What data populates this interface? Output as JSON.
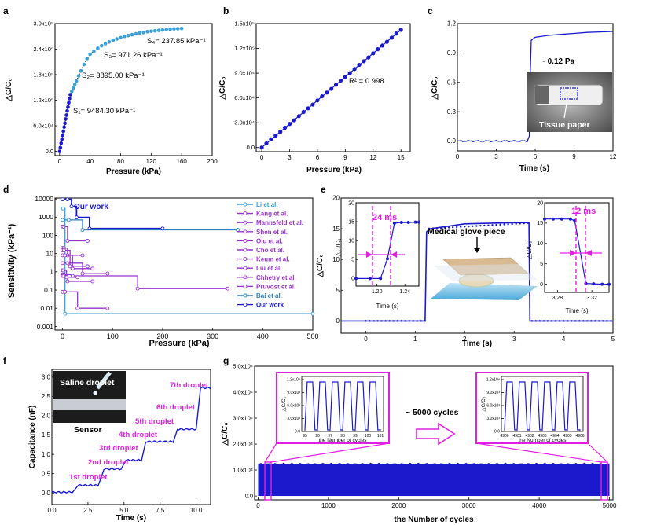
{
  "panels": {
    "a": {
      "label": "a",
      "xlabel": "Pressure (kPa)",
      "ylabel": "△C/C₀",
      "xticks": [
        "0",
        "40",
        "80",
        "120",
        "160",
        "200"
      ],
      "yticks": [
        "0.0",
        "6.0x10⁴",
        "1.2x10⁵",
        "1.8x10⁵",
        "2.4x10⁵",
        "3.0x10⁵"
      ],
      "annotations": [
        "S₄= 237.85 kPa⁻¹",
        "S₃= 971.26 kPa⁻¹",
        "S₂= 3895.00 kPa⁻¹",
        "S₁= 9484.30 kPa⁻¹"
      ]
    },
    "b": {
      "label": "b",
      "xlabel": "Pressure (kPa)",
      "ylabel": "△C/C₀",
      "xticks": [
        "0",
        "3",
        "6",
        "9",
        "12",
        "15"
      ],
      "yticks": [
        "0.0",
        "3.0x10⁴",
        "6.0x10⁴",
        "9.0x10⁴",
        "1.2x10⁵",
        "1.5x10⁵"
      ],
      "annotation": "R² = 0.998"
    },
    "c": {
      "label": "c",
      "xlabel": "Time (s)",
      "ylabel": "△C/C₀",
      "xticks": [
        "0",
        "3",
        "6",
        "9",
        "12"
      ],
      "yticks": [
        "0.0",
        "0.3",
        "0.6",
        "0.9",
        "1.2"
      ],
      "annotation": "~ 0.12 Pa",
      "inset_label": "Tissue paper"
    },
    "d": {
      "label": "d",
      "xlabel": "Pressure (kPa)",
      "ylabel": "Sensitivity (kPa⁻¹)",
      "xticks": [
        "0",
        "100",
        "200",
        "300",
        "400",
        "500"
      ],
      "yticks": [
        "0.001",
        "0.01",
        "0.1",
        "1",
        "10",
        "100",
        "1000",
        "10000"
      ],
      "our_work": "Our work",
      "legend": [
        "Li et al.",
        "Kang et al.",
        "Mannsfeld et al.",
        "Shen et al.",
        "Qiu et al.",
        "Cho et al.",
        "Keum et al.",
        "Liu et al.",
        "Chhetry et al.",
        "Pruvost et al.",
        "Bai et al.",
        "Our work"
      ]
    },
    "e": {
      "label": "e",
      "xlabel": "Time (s)",
      "ylabel": "△C/C₀",
      "xticks": [
        "0",
        "1",
        "2",
        "3",
        "4",
        "5"
      ],
      "yticks": [
        "0",
        "5",
        "10",
        "15",
        "20"
      ],
      "inset_left": {
        "xticks": [
          "1.20",
          "1.24"
        ],
        "yticks": [
          "0",
          "5",
          "10",
          "15",
          "20"
        ],
        "xlabel": "Time (s)",
        "ylabel": "△C/C₀",
        "label": "24 ms"
      },
      "inset_right": {
        "xticks": [
          "3.28",
          "3.32"
        ],
        "yticks": [
          "0",
          "5",
          "10",
          "15",
          "20"
        ],
        "xlabel": "Time (s)",
        "ylabel": "△C/C₀",
        "label": "12 ms"
      },
      "photo_label": "Medical glove piece"
    },
    "f": {
      "label": "f",
      "xlabel": "Time (s)",
      "ylabel": "Capacitance (nF)",
      "xticks": [
        "0.0",
        "2.5",
        "5.0",
        "7.5",
        "10.0"
      ],
      "yticks": [
        "0.0",
        "0.5",
        "1.0",
        "1.5",
        "2.0",
        "2.5",
        "3.0"
      ],
      "photo_labels": [
        "Saline droplet",
        "Sensor"
      ],
      "droplets": [
        "1st droplet",
        "2nd droplet",
        "3rd droplet",
        "4th droplet",
        "5th droplet",
        "6th droplet",
        "7th droplet"
      ]
    },
    "g": {
      "label": "g",
      "xlabel": "the Number of cycles",
      "ylabel": "△C/C₀",
      "xticks": [
        "0",
        "1000",
        "2000",
        "3000",
        "4000",
        "5000"
      ],
      "yticks": [
        "0.0",
        "1.0x10⁴",
        "2.0x10⁴",
        "3.0x10⁴",
        "4.0x10⁴",
        "5.0x10⁴"
      ],
      "annotation": "~ 5000 cycles",
      "inset_left": {
        "xticks": [
          "95",
          "96",
          "97",
          "98",
          "99",
          "100",
          "101"
        ],
        "yticks": [
          "0.0",
          "3.0x10³",
          "6.0x10³",
          "9.0x10³",
          "1.2x10⁴"
        ],
        "xlabel": "the Number of cycles",
        "ylabel": "△C/C₀"
      },
      "inset_right": {
        "xticks": [
          "4900",
          "4901",
          "4902",
          "4903",
          "4904",
          "4905",
          "4906"
        ],
        "yticks": [
          "0.0",
          "3.0x10³",
          "6.0x10³",
          "9.0x10³",
          "1.2x10⁴"
        ],
        "xlabel": "the Number of cycles",
        "ylabel": "△C/C₀"
      }
    }
  },
  "colors": {
    "blue": "#1a1acc",
    "teal": "#3aa0d8",
    "magenta": "#e020e0",
    "purple": "#9933cc"
  },
  "chart_data": [
    {
      "type": "scatter",
      "panel": "a",
      "title": "",
      "xlabel": "Pressure (kPa)",
      "ylabel": "△C/C₀",
      "xlim": [
        0,
        200
      ],
      "ylim": [
        0,
        300000
      ],
      "series": [
        {
          "name": "measured",
          "x": [
            0,
            1,
            2,
            3,
            4,
            5,
            6,
            7,
            8,
            9,
            10,
            11,
            12,
            13,
            14,
            16,
            18,
            20,
            22,
            25,
            28,
            32,
            36,
            40,
            45,
            50,
            55,
            60,
            65,
            70,
            75,
            80,
            85,
            90,
            95,
            100,
            105,
            110,
            115,
            120,
            125,
            130,
            135,
            140,
            145,
            150,
            155,
            160
          ],
          "y": [
            0,
            9000,
            19000,
            28000,
            38000,
            47000,
            57000,
            66000,
            76000,
            85000,
            95000,
            104000,
            114000,
            124000,
            133000,
            141000,
            149000,
            157000,
            165000,
            177000,
            189000,
            204000,
            218000,
            228000,
            235000,
            242000,
            248000,
            253000,
            257000,
            261000,
            264000,
            267000,
            270000,
            272000,
            274000,
            276000,
            278000,
            279000,
            281000,
            282000,
            283000,
            284000,
            285000,
            286000,
            287000,
            287500,
            288000,
            288500
          ]
        }
      ]
    },
    {
      "type": "scatter",
      "panel": "b",
      "title": "",
      "xlabel": "Pressure (kPa)",
      "ylabel": "△C/C₀",
      "xlim": [
        0,
        15
      ],
      "ylim": [
        0,
        150000
      ],
      "series": [
        {
          "name": "measured",
          "x": [
            0,
            0.5,
            1,
            1.5,
            2,
            2.5,
            3,
            3.5,
            4,
            4.5,
            5,
            5.5,
            6,
            6.5,
            7,
            7.5,
            8,
            8.5,
            9,
            9.5,
            10,
            10.5,
            11,
            11.5,
            12,
            12.5,
            13,
            13.5,
            14,
            14.5,
            15
          ],
          "y": [
            0,
            5000,
            10000,
            14500,
            19000,
            24000,
            28500,
            33000,
            38000,
            43000,
            47500,
            52000,
            57000,
            62000,
            66500,
            71000,
            76000,
            81000,
            85500,
            90000,
            95000,
            100000,
            104500,
            109000,
            114000,
            119000,
            123500,
            128000,
            133000,
            138000,
            142500
          ]
        }
      ]
    },
    {
      "type": "line",
      "panel": "c",
      "title": "",
      "xlabel": "Time (s)",
      "ylabel": "△C/C₀",
      "xlim": [
        0,
        12
      ],
      "ylim": [
        0,
        1.2
      ],
      "series": [
        {
          "name": "response",
          "x": [
            0,
            1,
            2,
            3,
            4,
            5,
            5.4,
            5.55,
            5.6,
            5.7,
            6,
            7,
            8,
            9,
            10,
            11,
            12
          ],
          "y": [
            0,
            0.005,
            -0.005,
            0.008,
            0,
            0.004,
            0.003,
            0.05,
            0.6,
            1.03,
            1.06,
            1.08,
            1.09,
            1.1,
            1.11,
            1.115,
            1.12
          ]
        }
      ]
    },
    {
      "type": "line",
      "panel": "d",
      "title": "",
      "xlabel": "Pressure (kPa)",
      "ylabel": "Sensitivity (kPa⁻¹)",
      "xlim": [
        -15,
        500
      ],
      "ylim": [
        0.001,
        10000
      ],
      "yscale": "log",
      "series": [
        {
          "name": "Li et al.",
          "x": [
            0,
            1,
            5,
            500
          ],
          "y": [
            3000,
            3000,
            0.005,
            0.005
          ]
        },
        {
          "name": "Kang et al.",
          "x": [
            0,
            3,
            20,
            150,
            330
          ],
          "y": [
            0.7,
            0.7,
            0.6,
            0.12,
            0.12
          ]
        },
        {
          "name": "Mannsfeld et al.",
          "x": [
            0,
            2,
            10,
            60
          ],
          "y": [
            0.6,
            0.6,
            0.3,
            0.3
          ]
        },
        {
          "name": "Shen et al.",
          "x": [
            0,
            5,
            30,
            90
          ],
          "y": [
            0.08,
            0.08,
            0.01,
            0.01
          ]
        },
        {
          "name": "Qiu et al.",
          "x": [
            0,
            3,
            10,
            40
          ],
          "y": [
            20,
            20,
            8,
            8
          ]
        },
        {
          "name": "Cho et al.",
          "x": [
            0,
            5,
            20,
            60
          ],
          "y": [
            8,
            8,
            1.5,
            1.5
          ]
        },
        {
          "name": "Keum et al.",
          "x": [
            0,
            10,
            40,
            90
          ],
          "y": [
            3,
            3,
            0.8,
            0.8
          ]
        },
        {
          "name": "Liu et al.",
          "x": [
            0,
            2,
            10,
            50
          ],
          "y": [
            300,
            300,
            50,
            50
          ]
        },
        {
          "name": "Chhetry et al.",
          "x": [
            0,
            3,
            15,
            50
          ],
          "y": [
            15,
            15,
            2,
            2
          ]
        },
        {
          "name": "Pruvost et al.",
          "x": [
            0,
            1,
            8,
            30
          ],
          "y": [
            1.2,
            1.2,
            0.5,
            0.5
          ]
        },
        {
          "name": "Bai et al.",
          "x": [
            0,
            12,
            40,
            350
          ],
          "y": [
            700,
            700,
            200,
            200
          ]
        },
        {
          "name": "Our work",
          "x": [
            0,
            10,
            18,
            28,
            54,
            200
          ],
          "y": [
            9484,
            9484,
            3895,
            971,
            238,
            238
          ]
        }
      ]
    },
    {
      "type": "line",
      "panel": "e",
      "title": "",
      "xlabel": "Time (s)",
      "ylabel": "△C/C₀",
      "xlim": [
        -0.5,
        5
      ],
      "ylim": [
        -2,
        20
      ],
      "series": [
        {
          "name": "response",
          "x": [
            -0.5,
            0,
            1,
            1.18,
            1.2,
            1.21,
            1.22,
            1.23,
            1.3,
            2,
            3,
            3.28,
            3.3,
            3.31,
            3.32,
            3.4,
            4,
            5
          ],
          "y": [
            0,
            0,
            0,
            0,
            0,
            5,
            10,
            14.5,
            15,
            15.8,
            16,
            16,
            16,
            8,
            0,
            0,
            0,
            0
          ]
        }
      ]
    },
    {
      "type": "line",
      "panel": "f",
      "title": "",
      "xlabel": "Time (s)",
      "ylabel": "Capacitance (nF)",
      "xlim": [
        0,
        11
      ],
      "ylim": [
        -0.3,
        3.2
      ],
      "series": [
        {
          "name": "capacitance",
          "x": [
            0,
            1.5,
            1.8,
            3.3,
            3.6,
            4.8,
            5.1,
            6.2,
            6.5,
            8.4,
            8.7,
            10,
            10.3,
            11
          ],
          "y": [
            0.02,
            0.02,
            0.2,
            0.2,
            0.62,
            0.62,
            0.85,
            0.85,
            1.33,
            1.33,
            1.65,
            1.65,
            2.72,
            2.72
          ]
        }
      ]
    },
    {
      "type": "area",
      "panel": "g",
      "title": "",
      "xlabel": "the Number of cycles",
      "ylabel": "△C/C₀",
      "xlim": [
        -50,
        5050
      ],
      "ylim": [
        -1500,
        50000
      ],
      "series": [
        {
          "name": "cycling",
          "x": [
            0,
            1000,
            2000,
            3000,
            4000,
            5000
          ],
          "y": [
            12000,
            12000,
            12000,
            12000,
            12000,
            12000
          ]
        }
      ]
    }
  ]
}
